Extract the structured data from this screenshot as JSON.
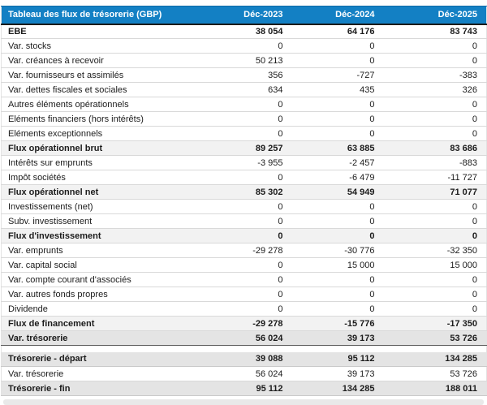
{
  "colors": {
    "header_bg": "#1380c4",
    "header_text": "#ffffff",
    "subtotal_bg": "#f2f2f2",
    "total_bg": "#e4e4e4",
    "row_border": "#d9d9d9",
    "total_border": "#595959",
    "header_border": "#1a1a1a"
  },
  "table": {
    "title": "Tableau des flux de trésorerie (GBP)",
    "columns": [
      "Déc-2023",
      "Déc-2024",
      "Déc-2025"
    ],
    "rows": [
      {
        "label": "EBE",
        "values": [
          "38 054",
          "64 176",
          "83 743"
        ],
        "style": "bold"
      },
      {
        "label": "Var. stocks",
        "values": [
          "0",
          "0",
          "0"
        ],
        "style": "normal"
      },
      {
        "label": "Var. créances à recevoir",
        "values": [
          "50 213",
          "0",
          "0"
        ],
        "style": "normal"
      },
      {
        "label": "Var. fournisseurs et assimilés",
        "values": [
          "356",
          "-727",
          "-383"
        ],
        "style": "normal"
      },
      {
        "label": "Var. dettes fiscales et sociales",
        "values": [
          "634",
          "435",
          "326"
        ],
        "style": "normal"
      },
      {
        "label": "Autres éléments opérationnels",
        "values": [
          "0",
          "0",
          "0"
        ],
        "style": "normal"
      },
      {
        "label": "Eléments financiers (hors intérêts)",
        "values": [
          "0",
          "0",
          "0"
        ],
        "style": "normal"
      },
      {
        "label": "Eléments exceptionnels",
        "values": [
          "0",
          "0",
          "0"
        ],
        "style": "normal"
      },
      {
        "label": "Flux opérationnel brut",
        "values": [
          "89 257",
          "63 885",
          "83 686"
        ],
        "style": "subtotal"
      },
      {
        "label": "Intérêts sur emprunts",
        "values": [
          "-3 955",
          "-2 457",
          "-883"
        ],
        "style": "normal"
      },
      {
        "label": "Impôt sociétés",
        "values": [
          "0",
          "-6 479",
          "-11 727"
        ],
        "style": "normal"
      },
      {
        "label": "Flux opérationnel net",
        "values": [
          "85 302",
          "54 949",
          "71 077"
        ],
        "style": "subtotal"
      },
      {
        "label": "Investissements (net)",
        "values": [
          "0",
          "0",
          "0"
        ],
        "style": "normal"
      },
      {
        "label": "Subv. investissement",
        "values": [
          "0",
          "0",
          "0"
        ],
        "style": "normal"
      },
      {
        "label": "Flux d'investissement",
        "values": [
          "0",
          "0",
          "0"
        ],
        "style": "subtotal"
      },
      {
        "label": "Var. emprunts",
        "values": [
          "-29 278",
          "-30 776",
          "-32 350"
        ],
        "style": "normal"
      },
      {
        "label": "Var. capital social",
        "values": [
          "0",
          "15 000",
          "15 000"
        ],
        "style": "normal"
      },
      {
        "label": "Var. compte courant d'associés",
        "values": [
          "0",
          "0",
          "0"
        ],
        "style": "normal"
      },
      {
        "label": "Var. autres fonds propres",
        "values": [
          "0",
          "0",
          "0"
        ],
        "style": "normal"
      },
      {
        "label": "Dividende",
        "values": [
          "0",
          "0",
          "0"
        ],
        "style": "normal"
      },
      {
        "label": "Flux de financement",
        "values": [
          "-29 278",
          "-15 776",
          "-17 350"
        ],
        "style": "subtotal"
      },
      {
        "label": "Var. trésorerie",
        "values": [
          "56 024",
          "39 173",
          "53 726"
        ],
        "style": "total"
      },
      {
        "label": "",
        "values": [],
        "style": "spacer"
      },
      {
        "label": "Trésorerie - départ",
        "values": [
          "39 088",
          "95 112",
          "134 285"
        ],
        "style": "summary"
      },
      {
        "label": "Var. trésorerie",
        "values": [
          "56 024",
          "39 173",
          "53 726"
        ],
        "style": "normal"
      },
      {
        "label": "Trésorerie - fin",
        "values": [
          "95 112",
          "134 285",
          "188 011"
        ],
        "style": "summary"
      }
    ]
  }
}
